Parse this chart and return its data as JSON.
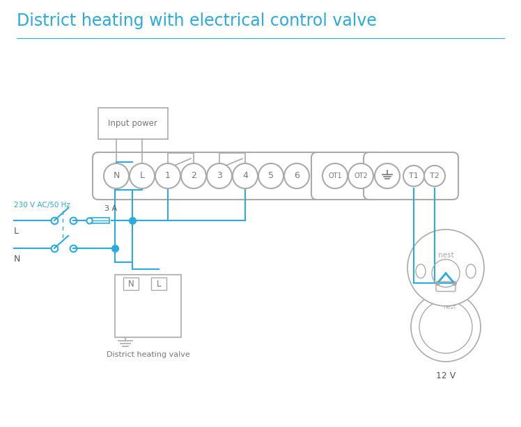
{
  "title": "District heating with electrical control valve",
  "title_color": "#29abe2",
  "title_fontsize": 17,
  "bg_color": "#ffffff",
  "wire_color": "#29abe2",
  "gray_color": "#aaaaaa",
  "dark_gray": "#777777",
  "label_color": "#555555",
  "input_power_label": "Input power",
  "district_valve_label": "District heating valve",
  "label_230v": "230 V AC/50 Hz",
  "label_L": "L",
  "label_N": "N",
  "label_3A": "3 A",
  "label_12V": "12 V",
  "label_nest": "nest",
  "term_main": [
    "N",
    "L",
    "1",
    "2",
    "3",
    "4",
    "5",
    "6"
  ],
  "term_ot": [
    "OT1",
    "OT2"
  ],
  "term_t": [
    "T1",
    "T2"
  ]
}
